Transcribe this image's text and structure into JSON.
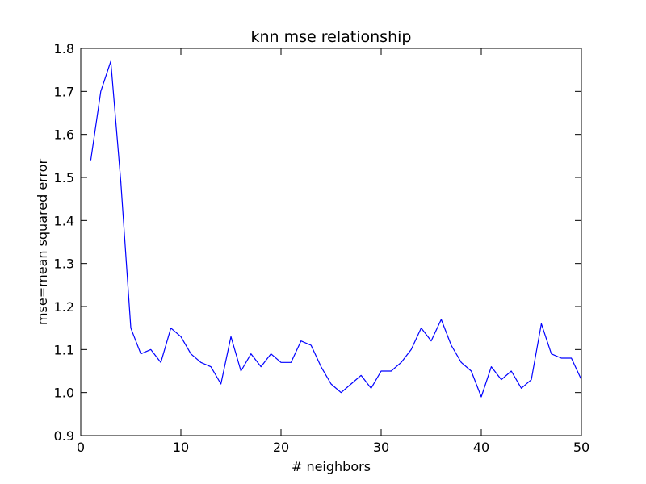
{
  "chart_data": {
    "type": "line",
    "title": "knn mse relationship",
    "xlabel": "# neighbors",
    "ylabel": "mse=mean squared error",
    "xlim": [
      0,
      50
    ],
    "ylim": [
      0.9,
      1.8
    ],
    "xticks": [
      "0",
      "10",
      "20",
      "30",
      "40",
      "50"
    ],
    "yticks": [
      "0.9",
      "1.0",
      "1.1",
      "1.2",
      "1.3",
      "1.4",
      "1.5",
      "1.6",
      "1.7",
      "1.8"
    ],
    "grid": false,
    "line_color": "#0000ff",
    "series": [
      {
        "x": [
          1,
          2,
          3,
          4,
          5,
          6,
          7,
          8,
          9,
          10,
          11,
          12,
          13,
          14,
          15,
          16,
          17,
          18,
          19,
          20,
          21,
          22,
          23,
          24,
          25,
          26,
          27,
          28,
          29,
          30,
          31,
          32,
          33,
          34,
          35,
          36,
          37,
          38,
          39,
          40,
          41,
          42,
          43,
          44,
          45,
          46,
          47,
          48,
          49,
          50
        ],
        "values": [
          1.54,
          1.7,
          1.77,
          1.49,
          1.15,
          1.09,
          1.1,
          1.07,
          1.15,
          1.13,
          1.09,
          1.07,
          1.06,
          1.02,
          1.13,
          1.05,
          1.09,
          1.06,
          1.09,
          1.07,
          1.07,
          1.12,
          1.11,
          1.06,
          1.02,
          1.0,
          1.02,
          1.04,
          1.01,
          1.05,
          1.05,
          1.07,
          1.1,
          1.15,
          1.12,
          1.17,
          1.11,
          1.07,
          1.05,
          0.99,
          1.06,
          1.03,
          1.05,
          1.01,
          1.03,
          1.16,
          1.09,
          1.08,
          1.08,
          1.03
        ]
      }
    ]
  }
}
